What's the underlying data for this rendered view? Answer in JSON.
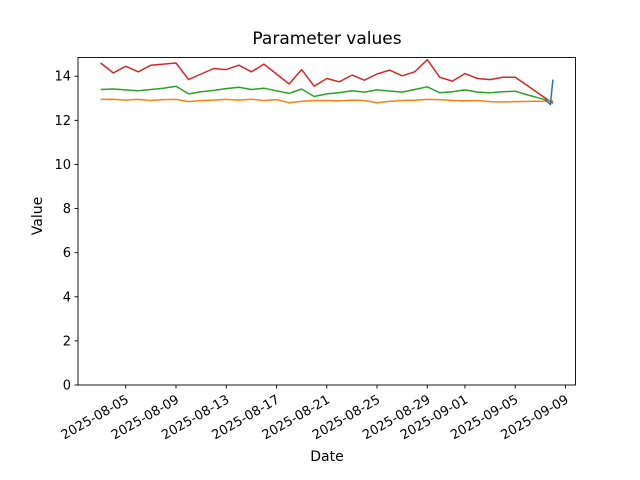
{
  "chart_data": {
    "type": "line",
    "title": "Parameter values",
    "xlabel": "Date",
    "ylabel": "Value",
    "grid": false,
    "legend_position": "none",
    "ylim": [
      0,
      14.85
    ],
    "xlim_day_offsets": [
      -1.8,
      37.8
    ],
    "y_ticks": [
      "0",
      "2",
      "4",
      "6",
      "8",
      "10",
      "12",
      "14"
    ],
    "y_tick_values": [
      0,
      2,
      4,
      6,
      8,
      10,
      12,
      14
    ],
    "x_tick_labels": [
      "2025-08-05",
      "2025-08-09",
      "2025-08-13",
      "2025-08-17",
      "2025-08-21",
      "2025-08-25",
      "2025-08-29",
      "2025-09-01",
      "2025-09-05",
      "2025-09-09"
    ],
    "x_tick_day_offsets": [
      2,
      6,
      10,
      14,
      18,
      22,
      26,
      29,
      33,
      37
    ],
    "dates": [
      "2025-08-03",
      "2025-08-04",
      "2025-08-05",
      "2025-08-06",
      "2025-08-07",
      "2025-08-08",
      "2025-08-09",
      "2025-08-10",
      "2025-08-11",
      "2025-08-12",
      "2025-08-13",
      "2025-08-14",
      "2025-08-15",
      "2025-08-16",
      "2025-08-17",
      "2025-08-18",
      "2025-08-19",
      "2025-08-20",
      "2025-08-21",
      "2025-08-22",
      "2025-08-23",
      "2025-08-24",
      "2025-08-25",
      "2025-08-26",
      "2025-08-27",
      "2025-08-28",
      "2025-08-29",
      "2025-08-30",
      "2025-08-31",
      "2025-09-01",
      "2025-09-02",
      "2025-09-03",
      "2025-09-04",
      "2025-09-05",
      "2025-09-06",
      "2025-09-07",
      "2025-09-08"
    ],
    "series": [
      {
        "name": "red",
        "color": "#d62728",
        "values": [
          14.6,
          14.15,
          14.45,
          14.2,
          14.5,
          14.55,
          14.6,
          13.85,
          14.1,
          14.35,
          14.3,
          14.5,
          14.2,
          14.55,
          14.1,
          13.65,
          14.3,
          13.55,
          13.9,
          13.75,
          14.05,
          13.82,
          14.1,
          14.28,
          14.02,
          14.2,
          14.75,
          13.95,
          13.78,
          14.12,
          13.9,
          13.85,
          13.95,
          13.95,
          13.56,
          13.17,
          12.78
        ]
      },
      {
        "name": "green",
        "color": "#2ca02c",
        "values": [
          13.4,
          13.42,
          13.38,
          13.34,
          13.4,
          13.46,
          13.55,
          13.2,
          13.3,
          13.36,
          13.44,
          13.5,
          13.4,
          13.46,
          13.34,
          13.22,
          13.42,
          13.08,
          13.2,
          13.26,
          13.34,
          13.28,
          13.38,
          13.33,
          13.28,
          13.4,
          13.52,
          13.25,
          13.3,
          13.38,
          13.28,
          13.25,
          13.3,
          13.32,
          13.15,
          13.0,
          12.85
        ]
      },
      {
        "name": "orange",
        "color": "#ff7f0e",
        "values": [
          12.95,
          12.96,
          12.92,
          12.95,
          12.9,
          12.94,
          12.95,
          12.85,
          12.9,
          12.92,
          12.95,
          12.92,
          12.96,
          12.9,
          12.94,
          12.8,
          12.86,
          12.9,
          12.9,
          12.88,
          12.92,
          12.9,
          12.8,
          12.86,
          12.9,
          12.92,
          12.95,
          12.94,
          12.9,
          12.88,
          12.9,
          12.85,
          12.83,
          12.85,
          12.86,
          12.87,
          12.88
        ]
      },
      {
        "name": "blue",
        "color": "#1f77b4",
        "x_day_offsets": [
          35.35,
          35.8,
          36.0
        ],
        "values": [
          12.95,
          12.72,
          13.85
        ]
      }
    ]
  }
}
